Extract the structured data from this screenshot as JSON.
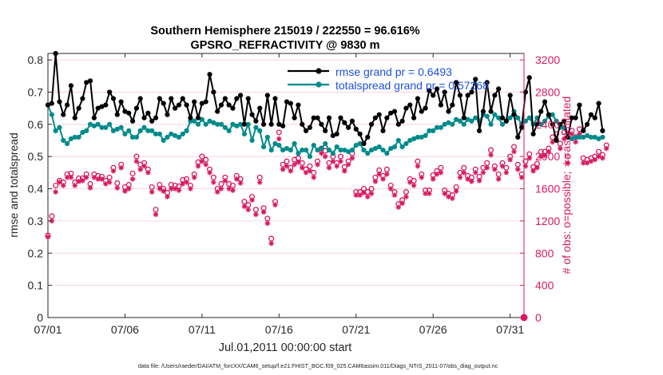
{
  "chart_data": {
    "type": "line",
    "title_line1": "Southern Hemisphere 215019 / 222550 = 96.616%",
    "title_line2": "GPSRO_REFRACTIVITY @ 9830 m",
    "xlabel": "Jul.01,2011 00:00:00 start",
    "ylabel_left": "rmse and totalspread",
    "ylabel_right": "# of obs: o=possible; ∗=assimilated",
    "footer": "data file: /Users/raeder/DAI/ATM_forcXX/CAM6_setup/f.e21.FHIST_BGC.f09_025.CAM6assim.011/Diags_NTrS_2011-07/obs_diag_output.nc",
    "x_tick_labels": [
      "07/01",
      "07/06",
      "07/11",
      "07/16",
      "07/21",
      "07/26",
      "07/31"
    ],
    "x_tick_days": [
      0,
      5,
      10,
      15,
      20,
      25,
      30
    ],
    "xlim": [
      0,
      30.9
    ],
    "ylim_left": [
      0,
      0.82
    ],
    "yticks_left": [
      "0",
      "0.1",
      "0.2",
      "0.3",
      "0.4",
      "0.5",
      "0.6",
      "0.7",
      "0.8"
    ],
    "ylim_right": [
      0,
      3280
    ],
    "yticks_right": [
      "0",
      "400",
      "800",
      "1200",
      "1600",
      "2000",
      "2400",
      "2800",
      "3200"
    ],
    "legend": [
      {
        "name": "rmse grand pr = 0.6493",
        "color": "#000000"
      },
      {
        "name": "totalspread grand pr = 0.57268",
        "color": "#008b8b"
      }
    ],
    "colors": {
      "rmse": "#000000",
      "spread": "#008b8b",
      "obs": "#d7195f",
      "legend_text": "#1f4fe0"
    },
    "series": [
      {
        "name": "rmse",
        "values": [
          0.66,
          0.665,
          0.82,
          0.67,
          0.63,
          0.66,
          0.72,
          0.62,
          0.65,
          0.68,
          0.73,
          0.735,
          0.62,
          0.65,
          0.655,
          0.66,
          0.7,
          0.68,
          0.63,
          0.67,
          0.64,
          0.635,
          0.61,
          0.65,
          0.68,
          0.62,
          0.635,
          0.61,
          0.62,
          0.68,
          0.665,
          0.63,
          0.68,
          0.65,
          0.66,
          0.68,
          0.66,
          0.62,
          0.67,
          0.62,
          0.665,
          0.67,
          0.755,
          0.7,
          0.64,
          0.66,
          0.68,
          0.66,
          0.65,
          0.68,
          0.69,
          0.6,
          0.68,
          0.63,
          0.61,
          0.65,
          0.6,
          0.69,
          0.6,
          0.68,
          0.6,
          0.595,
          0.67,
          0.665,
          0.62,
          0.66,
          0.6,
          0.58,
          0.59,
          0.62,
          0.62,
          0.6,
          0.58,
          0.62,
          0.565,
          0.57,
          0.62,
          0.605,
          0.59,
          0.61,
          0.585,
          0.57,
          0.54,
          0.56,
          0.6,
          0.62,
          0.63,
          0.58,
          0.62,
          0.635,
          0.64,
          0.6,
          0.61,
          0.65,
          0.66,
          0.62,
          0.68,
          0.64,
          0.65,
          0.705,
          0.69,
          0.71,
          0.66,
          0.7,
          0.64,
          0.66,
          0.73,
          0.69,
          0.62,
          0.69,
          0.7,
          0.74,
          0.58,
          0.64,
          0.73,
          0.64,
          0.69,
          0.71,
          0.62,
          0.61,
          0.69,
          0.63,
          0.56,
          0.59,
          0.7,
          0.745,
          0.57,
          0.6,
          0.64,
          0.67,
          0.63,
          0.6,
          0.55,
          0.6,
          0.61,
          0.56,
          0.62,
          0.62,
          0.66,
          0.58,
          0.6,
          0.63,
          0.62,
          0.665,
          0.58
        ]
      },
      {
        "name": "totalspread",
        "values": [
          0.66,
          0.63,
          0.58,
          0.59,
          0.55,
          0.54,
          0.555,
          0.56,
          0.56,
          0.575,
          0.58,
          0.6,
          0.595,
          0.6,
          0.59,
          0.59,
          0.6,
          0.58,
          0.585,
          0.59,
          0.57,
          0.58,
          0.56,
          0.56,
          0.58,
          0.59,
          0.58,
          0.58,
          0.57,
          0.57,
          0.55,
          0.56,
          0.57,
          0.565,
          0.56,
          0.57,
          0.58,
          0.61,
          0.61,
          0.6,
          0.615,
          0.6,
          0.61,
          0.605,
          0.6,
          0.6,
          0.59,
          0.58,
          0.6,
          0.595,
          0.6,
          0.57,
          0.6,
          0.55,
          0.59,
          0.58,
          0.53,
          0.56,
          0.52,
          0.54,
          0.535,
          0.52,
          0.525,
          0.52,
          0.54,
          0.51,
          0.52,
          0.52,
          0.5,
          0.535,
          0.52,
          0.525,
          0.54,
          0.52,
          0.51,
          0.53,
          0.52,
          0.52,
          0.515,
          0.52,
          0.535,
          0.54,
          0.52,
          0.51,
          0.52,
          0.525,
          0.53,
          0.52,
          0.51,
          0.525,
          0.53,
          0.55,
          0.53,
          0.54,
          0.55,
          0.555,
          0.56,
          0.56,
          0.565,
          0.58,
          0.58,
          0.59,
          0.59,
          0.6,
          0.605,
          0.6,
          0.615,
          0.61,
          0.6,
          0.615,
          0.61,
          0.62,
          0.61,
          0.63,
          0.625,
          0.6,
          0.63,
          0.62,
          0.6,
          0.61,
          0.62,
          0.64,
          0.62,
          0.6,
          0.61,
          0.62,
          0.6,
          0.62,
          0.6,
          0.61,
          0.625,
          0.63,
          0.61,
          0.59,
          0.59,
          0.56,
          0.555,
          0.56,
          0.56,
          0.56,
          0.565,
          0.56,
          0.56,
          0.555,
          0.56
        ]
      },
      {
        "name": "obs_possible",
        "values": [
          1020,
          1260,
          1640,
          1700,
          1680,
          1780,
          1790,
          1680,
          1730,
          1730,
          1780,
          1660,
          1780,
          1760,
          1750,
          1700,
          1740,
          1860,
          1670,
          1900,
          1620,
          1650,
          1790,
          2000,
          1900,
          1920,
          1840,
          1620,
          1340,
          1650,
          1600,
          1550,
          1650,
          1640,
          1630,
          1710,
          1720,
          1640,
          1780,
          1930,
          2000,
          1960,
          1840,
          1740,
          1600,
          1660,
          1740,
          1660,
          1640,
          1760,
          1720,
          1440,
          1400,
          1500,
          1340,
          1740,
          1360,
          1230,
          980,
          1440,
          2300,
          1900,
          1940,
          1860,
          1960,
          1980,
          1920,
          1840,
          1880,
          1800,
          1940,
          2100,
          2070,
          1920,
          2000,
          1920,
          2000,
          1870,
          1940,
          2040,
          1560,
          1560,
          1600,
          1560,
          1600,
          1740,
          1830,
          1760,
          1840,
          1640,
          1560,
          1410,
          1460,
          1560,
          1720,
          1700,
          1940,
          1780,
          1580,
          1580,
          1770,
          1820,
          1860,
          1580,
          1540,
          1520,
          1620,
          1800,
          1860,
          1760,
          1740,
          1840,
          1750,
          1860,
          1920,
          2080,
          1880,
          1780,
          1920,
          1860,
          2000,
          2120,
          1900,
          1780,
          1940,
          2030,
          1870,
          1910,
          2060,
          2060,
          2100,
          2240,
          2280,
          2160,
          2300,
          2000,
          2320,
          2240,
          2340,
          1980,
          1960,
          1980,
          2000,
          2060,
          2020,
          2140
        ]
      },
      {
        "name": "obs_assimilated",
        "values": [
          1000,
          1200,
          1560,
          1680,
          1640,
          1740,
          1740,
          1640,
          1690,
          1700,
          1740,
          1610,
          1740,
          1720,
          1720,
          1660,
          1680,
          1820,
          1610,
          1860,
          1570,
          1600,
          1720,
          1940,
          1840,
          1880,
          1800,
          1560,
          1280,
          1600,
          1570,
          1500,
          1600,
          1600,
          1580,
          1660,
          1680,
          1600,
          1740,
          1880,
          1940,
          1900,
          1800,
          1680,
          1560,
          1600,
          1700,
          1600,
          1580,
          1720,
          1670,
          1380,
          1340,
          1460,
          1280,
          1680,
          1310,
          1170,
          920,
          1400,
          2220,
          1840,
          1880,
          1820,
          1900,
          1930,
          1860,
          1800,
          1820,
          1740,
          1900,
          2040,
          2000,
          1860,
          1940,
          1880,
          1940,
          1820,
          1900,
          1980,
          1520,
          1520,
          1550,
          1500,
          1540,
          1690,
          1780,
          1720,
          1780,
          1600,
          1520,
          1370,
          1420,
          1500,
          1680,
          1640,
          1880,
          1740,
          1540,
          1540,
          1720,
          1780,
          1800,
          1540,
          1500,
          1480,
          1570,
          1740,
          1800,
          1720,
          1690,
          1800,
          1700,
          1800,
          1860,
          2020,
          1840,
          1720,
          1880,
          1800,
          1960,
          2060,
          1840,
          1740,
          1880,
          1980,
          1820,
          1860,
          2000,
          2010,
          2060,
          2180,
          2220,
          2100,
          2220,
          1920,
          2280,
          2180,
          2280,
          1920,
          1920,
          1940,
          1960,
          2000,
          1980,
          2100
        ]
      }
    ]
  }
}
